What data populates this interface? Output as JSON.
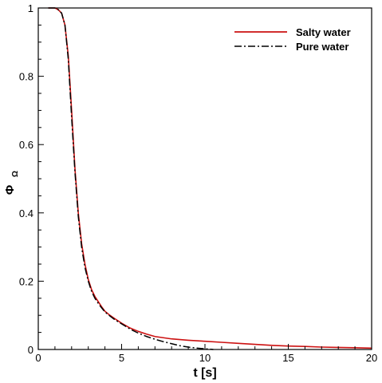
{
  "chart_data": {
    "type": "line",
    "title": "",
    "xlabel": "t [s]",
    "ylabel": "Φ",
    "ylabel_subscript": "Ω",
    "xlim": [
      0,
      20
    ],
    "ylim": [
      0,
      1
    ],
    "xticks": [
      0,
      5,
      10,
      15,
      20
    ],
    "yticks": [
      0,
      0.2,
      0.4,
      0.6,
      0.8,
      1
    ],
    "xtick_labels": [
      "0",
      "5",
      "10",
      "15",
      "20"
    ],
    "ytick_labels": [
      "0",
      "0.2",
      "0.4",
      "0.6",
      "0.8",
      "1"
    ],
    "grid": false,
    "legend_position": "top-right",
    "series": [
      {
        "name": "Salty water",
        "color": "#cc1111",
        "style": "solid",
        "x": [
          0.6,
          0.8,
          1.0,
          1.2,
          1.4,
          1.6,
          1.8,
          2.0,
          2.2,
          2.4,
          2.6,
          2.8,
          3.0,
          3.2,
          3.4,
          3.6,
          3.8,
          4.0,
          4.3,
          4.6,
          5.0,
          5.5,
          6.0,
          6.5,
          7.0,
          8.0,
          9.0,
          10.0,
          11.0,
          12.0,
          13.0,
          14.0,
          15.0,
          16.0,
          17.0,
          18.0,
          19.0,
          20.0
        ],
        "y": [
          1.0,
          1.0,
          1.0,
          0.995,
          0.985,
          0.95,
          0.86,
          0.7,
          0.53,
          0.4,
          0.31,
          0.25,
          0.205,
          0.175,
          0.155,
          0.14,
          0.125,
          0.112,
          0.1,
          0.09,
          0.077,
          0.063,
          0.053,
          0.045,
          0.038,
          0.031,
          0.027,
          0.024,
          0.021,
          0.018,
          0.015,
          0.012,
          0.01,
          0.009,
          0.007,
          0.006,
          0.005,
          0.004
        ]
      },
      {
        "name": "Pure water",
        "color": "#000000",
        "style": "dashdot",
        "x": [
          0.6,
          0.8,
          1.0,
          1.2,
          1.4,
          1.6,
          1.8,
          2.0,
          2.2,
          2.4,
          2.6,
          2.8,
          3.0,
          3.2,
          3.4,
          3.6,
          3.8,
          4.0,
          4.3,
          4.6,
          5.0,
          5.5,
          6.0,
          6.5,
          7.0,
          7.5,
          8.0,
          8.5,
          9.0,
          9.5,
          10.0,
          10.5
        ],
        "y": [
          1.0,
          1.0,
          1.0,
          0.995,
          0.985,
          0.95,
          0.85,
          0.68,
          0.52,
          0.39,
          0.3,
          0.24,
          0.2,
          0.17,
          0.15,
          0.135,
          0.122,
          0.11,
          0.098,
          0.087,
          0.075,
          0.06,
          0.048,
          0.038,
          0.03,
          0.023,
          0.017,
          0.011,
          0.007,
          0.004,
          0.002,
          0.0
        ]
      }
    ]
  }
}
